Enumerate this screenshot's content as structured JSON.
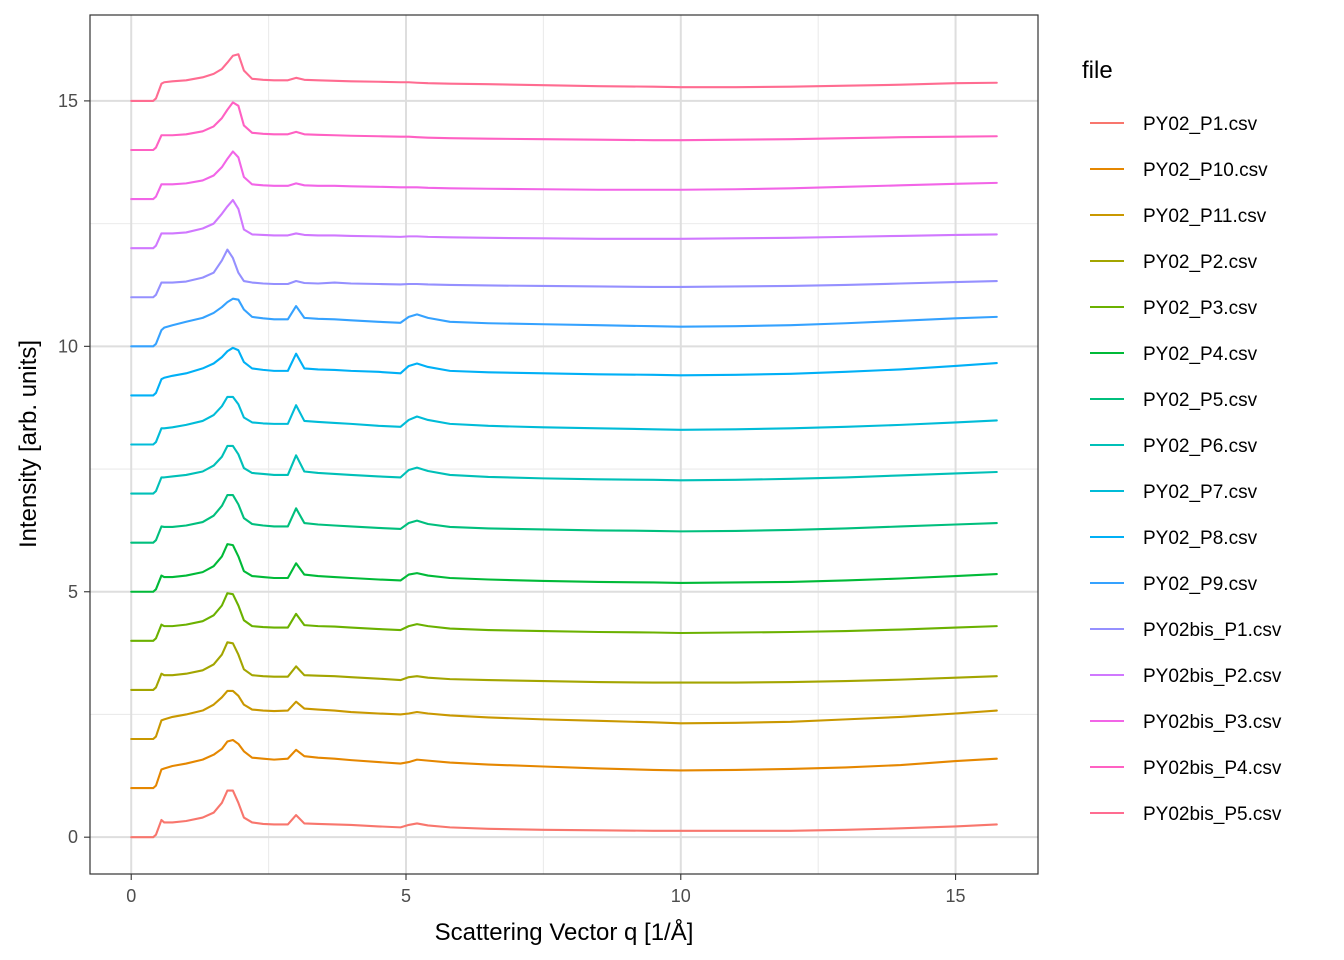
{
  "chart_data": {
    "type": "line",
    "title": "",
    "xlabel": "Scattering Vector q [1/Å]",
    "ylabel": "Intensity [arb. units]",
    "xlim": [
      -0.75,
      16.5
    ],
    "ylim": [
      -0.75,
      16.75
    ],
    "x_ticks": [
      0,
      5,
      10,
      15
    ],
    "x_tick_labels": [
      "0",
      "5",
      "10",
      "15"
    ],
    "y_ticks": [
      0,
      5,
      10,
      15
    ],
    "y_tick_labels": [
      "0",
      "5",
      "10",
      "15"
    ],
    "grid": true,
    "legend": {
      "title": "file",
      "position": "right"
    },
    "x": [
      0,
      0.4,
      0.45,
      0.55,
      0.6,
      0.75,
      1.0,
      1.3,
      1.5,
      1.65,
      1.75,
      1.85,
      1.95,
      2.05,
      2.2,
      2.4,
      2.6,
      2.85,
      3.0,
      3.15,
      3.4,
      3.7,
      4.0,
      4.5,
      4.9,
      5.05,
      5.2,
      5.4,
      5.8,
      6.5,
      7.5,
      8.5,
      9.5,
      10.0,
      11.0,
      12.0,
      13.0,
      14.0,
      15.0,
      15.75
    ],
    "series": [
      {
        "name": "PY02_P1.csv",
        "color": "#F8766D",
        "y": [
          0,
          0,
          0.05,
          0.35,
          0.3,
          0.3,
          0.33,
          0.4,
          0.5,
          0.7,
          0.95,
          0.95,
          0.7,
          0.4,
          0.3,
          0.27,
          0.26,
          0.26,
          0.45,
          0.28,
          0.27,
          0.26,
          0.25,
          0.22,
          0.2,
          0.25,
          0.28,
          0.24,
          0.2,
          0.17,
          0.15,
          0.14,
          0.13,
          0.13,
          0.13,
          0.13,
          0.15,
          0.18,
          0.22,
          0.26
        ]
      },
      {
        "name": "PY02_P10.csv",
        "color": "#E58700",
        "y": [
          1,
          1,
          1.05,
          1.38,
          1.4,
          1.45,
          1.5,
          1.58,
          1.68,
          1.8,
          1.95,
          1.98,
          1.9,
          1.75,
          1.62,
          1.6,
          1.58,
          1.6,
          1.78,
          1.65,
          1.62,
          1.6,
          1.57,
          1.53,
          1.5,
          1.53,
          1.58,
          1.56,
          1.52,
          1.48,
          1.44,
          1.4,
          1.37,
          1.36,
          1.37,
          1.39,
          1.42,
          1.47,
          1.55,
          1.6
        ]
      },
      {
        "name": "PY02_P11.csv",
        "color": "#C99800",
        "y": [
          2,
          2,
          2.05,
          2.38,
          2.4,
          2.45,
          2.5,
          2.58,
          2.7,
          2.85,
          2.98,
          2.98,
          2.88,
          2.7,
          2.6,
          2.58,
          2.57,
          2.58,
          2.76,
          2.62,
          2.6,
          2.58,
          2.55,
          2.52,
          2.5,
          2.52,
          2.55,
          2.52,
          2.48,
          2.44,
          2.4,
          2.37,
          2.34,
          2.32,
          2.33,
          2.35,
          2.4,
          2.45,
          2.52,
          2.58
        ]
      },
      {
        "name": "PY02_P2.csv",
        "color": "#A3A500",
        "y": [
          3,
          3,
          3.05,
          3.33,
          3.3,
          3.3,
          3.33,
          3.4,
          3.52,
          3.72,
          3.97,
          3.95,
          3.72,
          3.42,
          3.3,
          3.28,
          3.27,
          3.27,
          3.48,
          3.3,
          3.29,
          3.28,
          3.26,
          3.23,
          3.2,
          3.26,
          3.28,
          3.25,
          3.22,
          3.2,
          3.18,
          3.16,
          3.15,
          3.15,
          3.15,
          3.16,
          3.18,
          3.21,
          3.25,
          3.28
        ]
      },
      {
        "name": "PY02_P3.csv",
        "color": "#6BB100",
        "y": [
          4,
          4,
          4.05,
          4.33,
          4.3,
          4.3,
          4.33,
          4.4,
          4.52,
          4.72,
          4.97,
          4.95,
          4.72,
          4.42,
          4.3,
          4.28,
          4.27,
          4.27,
          4.55,
          4.32,
          4.3,
          4.29,
          4.27,
          4.24,
          4.22,
          4.3,
          4.34,
          4.3,
          4.25,
          4.22,
          4.2,
          4.18,
          4.17,
          4.16,
          4.17,
          4.18,
          4.2,
          4.23,
          4.27,
          4.3
        ]
      },
      {
        "name": "PY02_P4.csv",
        "color": "#00BA38",
        "y": [
          5,
          5,
          5.05,
          5.33,
          5.3,
          5.3,
          5.33,
          5.4,
          5.52,
          5.72,
          5.97,
          5.95,
          5.72,
          5.42,
          5.32,
          5.3,
          5.28,
          5.28,
          5.58,
          5.35,
          5.32,
          5.3,
          5.28,
          5.25,
          5.23,
          5.35,
          5.38,
          5.33,
          5.28,
          5.25,
          5.22,
          5.2,
          5.19,
          5.18,
          5.19,
          5.2,
          5.23,
          5.27,
          5.32,
          5.36
        ]
      },
      {
        "name": "PY02_P5.csv",
        "color": "#00BF7D",
        "y": [
          6,
          6,
          6.05,
          6.33,
          6.32,
          6.32,
          6.35,
          6.42,
          6.55,
          6.75,
          6.97,
          6.97,
          6.78,
          6.5,
          6.38,
          6.35,
          6.33,
          6.33,
          6.7,
          6.4,
          6.37,
          6.35,
          6.33,
          6.3,
          6.28,
          6.4,
          6.45,
          6.38,
          6.32,
          6.29,
          6.27,
          6.25,
          6.24,
          6.23,
          6.24,
          6.26,
          6.29,
          6.33,
          6.37,
          6.4
        ]
      },
      {
        "name": "PY02_P6.csv",
        "color": "#00C0B8",
        "y": [
          7,
          7,
          7.05,
          7.33,
          7.33,
          7.35,
          7.38,
          7.45,
          7.57,
          7.75,
          7.97,
          7.97,
          7.8,
          7.52,
          7.42,
          7.4,
          7.38,
          7.38,
          7.78,
          7.45,
          7.42,
          7.4,
          7.38,
          7.35,
          7.33,
          7.48,
          7.53,
          7.46,
          7.38,
          7.34,
          7.31,
          7.29,
          7.28,
          7.27,
          7.28,
          7.3,
          7.33,
          7.37,
          7.41,
          7.44
        ]
      },
      {
        "name": "PY02_P7.csv",
        "color": "#00BCD8",
        "y": [
          8,
          8,
          8.05,
          8.33,
          8.33,
          8.35,
          8.4,
          8.48,
          8.6,
          8.78,
          8.97,
          8.97,
          8.82,
          8.55,
          8.45,
          8.43,
          8.42,
          8.42,
          8.8,
          8.48,
          8.46,
          8.44,
          8.42,
          8.38,
          8.36,
          8.5,
          8.57,
          8.5,
          8.42,
          8.38,
          8.35,
          8.33,
          8.31,
          8.3,
          8.31,
          8.33,
          8.36,
          8.4,
          8.45,
          8.49
        ]
      },
      {
        "name": "PY02_P8.csv",
        "color": "#00B0F6",
        "y": [
          9,
          9,
          9.05,
          9.33,
          9.36,
          9.4,
          9.45,
          9.55,
          9.65,
          9.78,
          9.9,
          9.97,
          9.92,
          9.68,
          9.55,
          9.52,
          9.5,
          9.5,
          9.85,
          9.55,
          9.53,
          9.52,
          9.5,
          9.48,
          9.45,
          9.6,
          9.65,
          9.58,
          9.5,
          9.47,
          9.45,
          9.43,
          9.42,
          9.41,
          9.42,
          9.44,
          9.48,
          9.53,
          9.6,
          9.66
        ]
      },
      {
        "name": "PY02_P9.csv",
        "color": "#35A2FF",
        "y": [
          10,
          10,
          10.05,
          10.33,
          10.38,
          10.43,
          10.5,
          10.58,
          10.68,
          10.8,
          10.9,
          10.97,
          10.95,
          10.75,
          10.6,
          10.57,
          10.55,
          10.55,
          10.82,
          10.58,
          10.56,
          10.55,
          10.53,
          10.5,
          10.48,
          10.6,
          10.65,
          10.58,
          10.5,
          10.47,
          10.45,
          10.43,
          10.41,
          10.4,
          10.41,
          10.43,
          10.47,
          10.52,
          10.57,
          10.6
        ]
      },
      {
        "name": "PY02bis_P1.csv",
        "color": "#9590FF",
        "y": [
          11,
          11,
          11.05,
          11.3,
          11.3,
          11.3,
          11.32,
          11.4,
          11.5,
          11.75,
          11.97,
          11.8,
          11.5,
          11.33,
          11.3,
          11.28,
          11.27,
          11.27,
          11.33,
          11.29,
          11.28,
          11.3,
          11.28,
          11.27,
          11.26,
          11.27,
          11.27,
          11.26,
          11.25,
          11.24,
          11.23,
          11.22,
          11.21,
          11.21,
          11.22,
          11.23,
          11.25,
          11.28,
          11.31,
          11.33
        ]
      },
      {
        "name": "PY02bis_P2.csv",
        "color": "#D078FF",
        "y": [
          12,
          12,
          12.05,
          12.3,
          12.3,
          12.3,
          12.32,
          12.4,
          12.5,
          12.7,
          12.85,
          12.98,
          12.8,
          12.38,
          12.28,
          12.27,
          12.26,
          12.26,
          12.3,
          12.27,
          12.26,
          12.26,
          12.25,
          12.24,
          12.23,
          12.24,
          12.24,
          12.23,
          12.22,
          12.21,
          12.2,
          12.19,
          12.19,
          12.19,
          12.2,
          12.21,
          12.23,
          12.25,
          12.27,
          12.28
        ]
      },
      {
        "name": "PY02bis_P3.csv",
        "color": "#F265E7",
        "y": [
          13,
          13,
          13.05,
          13.3,
          13.3,
          13.3,
          13.32,
          13.38,
          13.48,
          13.65,
          13.82,
          13.97,
          13.85,
          13.45,
          13.3,
          13.28,
          13.27,
          13.27,
          13.32,
          13.28,
          13.27,
          13.27,
          13.26,
          13.25,
          13.24,
          13.24,
          13.24,
          13.23,
          13.22,
          13.21,
          13.2,
          13.19,
          13.19,
          13.19,
          13.2,
          13.22,
          13.25,
          13.28,
          13.31,
          13.33
        ]
      },
      {
        "name": "PY02bis_P4.csv",
        "color": "#FF61C3",
        "y": [
          14,
          14,
          14.05,
          14.3,
          14.3,
          14.3,
          14.32,
          14.38,
          14.48,
          14.65,
          14.82,
          14.97,
          14.9,
          14.5,
          14.35,
          14.33,
          14.32,
          14.32,
          14.37,
          14.32,
          14.31,
          14.3,
          14.29,
          14.28,
          14.27,
          14.27,
          14.26,
          14.25,
          14.24,
          14.23,
          14.22,
          14.21,
          14.2,
          14.2,
          14.21,
          14.22,
          14.24,
          14.26,
          14.27,
          14.28
        ]
      },
      {
        "name": "PY02bis_P5.csv",
        "color": "#FF6C91",
        "y": [
          15,
          15,
          15.05,
          15.35,
          15.38,
          15.4,
          15.42,
          15.48,
          15.55,
          15.65,
          15.78,
          15.92,
          15.95,
          15.62,
          15.45,
          15.43,
          15.42,
          15.42,
          15.47,
          15.43,
          15.42,
          15.41,
          15.4,
          15.39,
          15.38,
          15.38,
          15.37,
          15.36,
          15.35,
          15.34,
          15.32,
          15.3,
          15.29,
          15.28,
          15.28,
          15.29,
          15.31,
          15.33,
          15.36,
          15.37
        ]
      }
    ]
  }
}
